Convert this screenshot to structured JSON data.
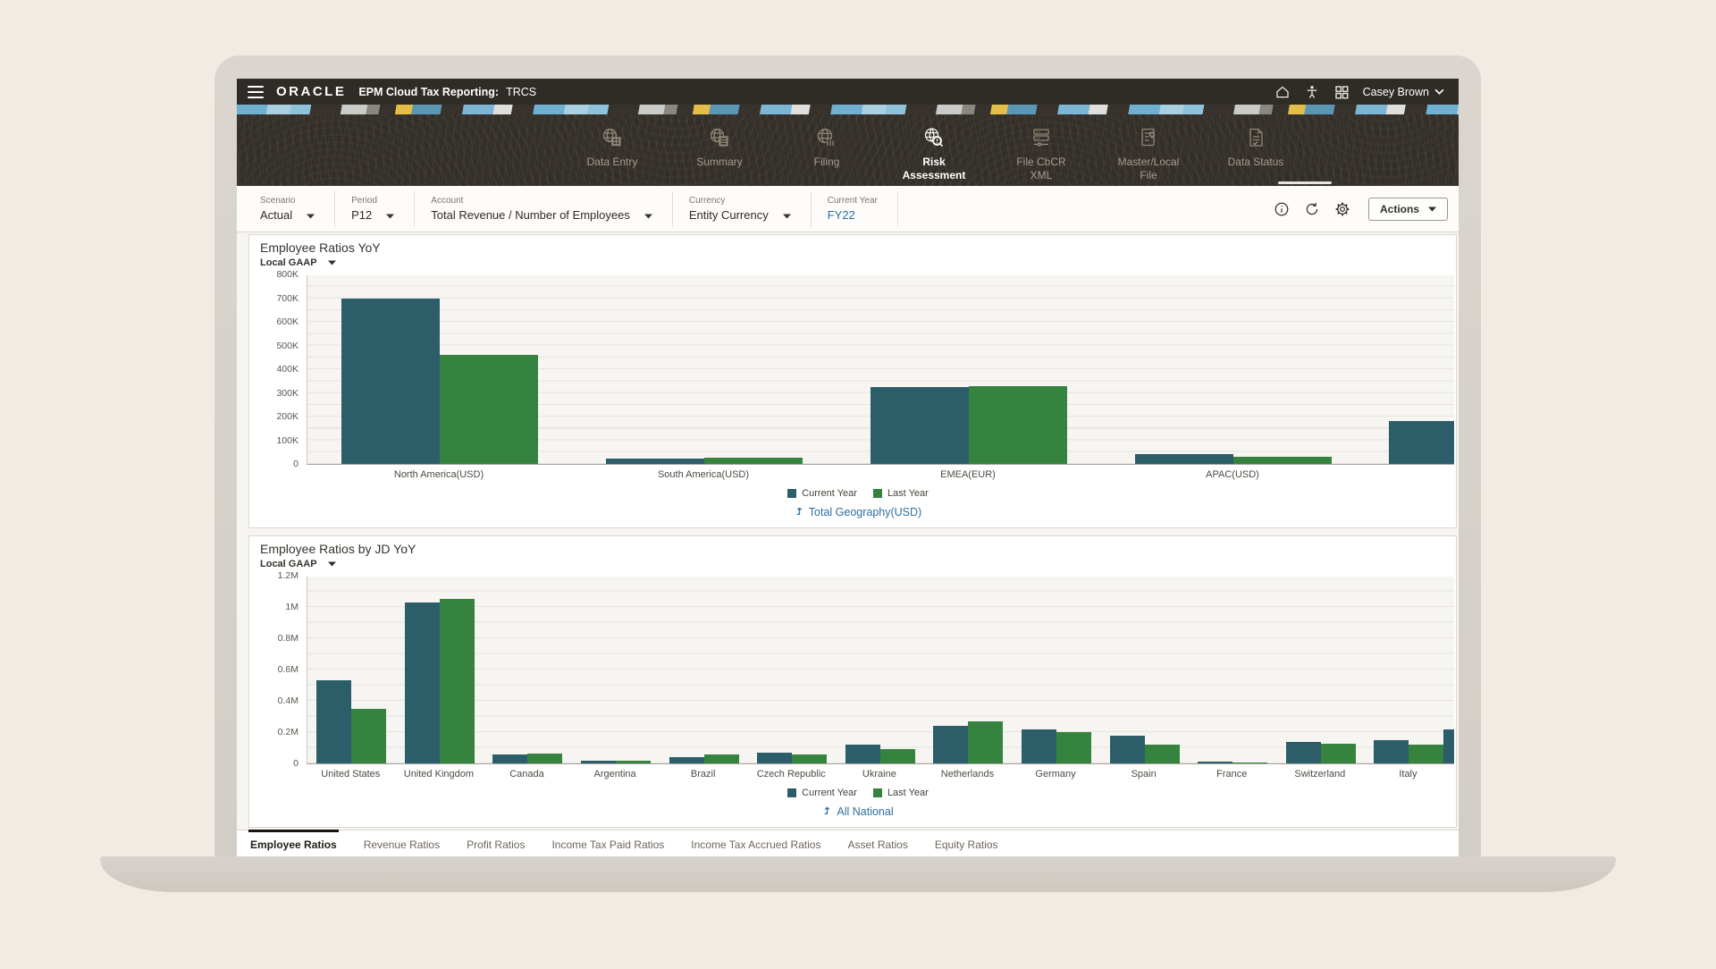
{
  "topbar": {
    "brand": "ORACLE",
    "app_title": "EPM Cloud Tax Reporting:",
    "app_context": "TRCS",
    "user": "Casey Brown"
  },
  "nav": {
    "items": [
      {
        "label": "Data Entry",
        "icon": "data-entry-icon",
        "active": false
      },
      {
        "label": "Summary",
        "icon": "summary-icon",
        "active": false
      },
      {
        "label": "Filing",
        "icon": "filing-icon",
        "active": false
      },
      {
        "label": "Risk Assessment",
        "icon": "risk-assessment-icon",
        "active": true
      },
      {
        "label": "File CbCR XML",
        "icon": "file-cbcr-xml-icon",
        "active": false
      },
      {
        "label": "Master/Local File",
        "icon": "master-local-file-icon",
        "active": false
      },
      {
        "label": "Data Status",
        "icon": "data-status-icon",
        "active": false
      }
    ]
  },
  "filters": {
    "items": [
      {
        "label": "Scenario",
        "value": "Actual",
        "dropdown": true,
        "highlight": false
      },
      {
        "label": "Period",
        "value": "P12",
        "dropdown": true,
        "highlight": false
      },
      {
        "label": "Account",
        "value": "Total Revenue / Number of Employees",
        "dropdown": true,
        "highlight": false
      },
      {
        "label": "Currency",
        "value": "Entity Currency",
        "dropdown": true,
        "highlight": false
      },
      {
        "label": "Current Year",
        "value": "FY22",
        "dropdown": false,
        "highlight": true
      }
    ],
    "actions_label": "Actions"
  },
  "colors": {
    "current_year_bar": "#2c5e6a",
    "last_year_bar": "#36823f",
    "link": "#2e6f9e"
  },
  "chart_data": [
    {
      "type": "bar",
      "title": "Employee Ratios YoY",
      "subtitle": "Local GAAP",
      "categories": [
        "North America(USD)",
        "South America(USD)",
        "EMEA(EUR)",
        "APAC(USD)"
      ],
      "series": [
        {
          "name": "Current Year",
          "color": "#2c5e6a",
          "values": [
            700000,
            22000,
            325000,
            42000
          ]
        },
        {
          "name": "Last Year",
          "color": "#36823f",
          "values": [
            460000,
            28000,
            330000,
            30000
          ]
        }
      ],
      "y_ticks": [
        "0",
        "100K",
        "200K",
        "300K",
        "400K",
        "500K",
        "600K",
        "700K",
        "800K"
      ],
      "ylim": [
        0,
        800000
      ],
      "grid": true,
      "legend_position": "bottom-center",
      "clipped_partial_bar_value": 180000,
      "footer_link": "Total Geography(USD)"
    },
    {
      "type": "bar",
      "title": "Employee Ratios by JD YoY",
      "subtitle": "Local GAAP",
      "categories": [
        "United States",
        "United Kingdom",
        "Canada",
        "Argentina",
        "Brazil",
        "Czech Republic",
        "Ukraine",
        "Netherlands",
        "Germany",
        "Spain",
        "France",
        "Switzerland",
        "Italy"
      ],
      "series": [
        {
          "name": "Current Year",
          "color": "#2c5e6a",
          "values": [
            530000,
            1030000,
            55000,
            18000,
            40000,
            70000,
            120000,
            240000,
            220000,
            180000,
            12000,
            140000,
            150000
          ]
        },
        {
          "name": "Last Year",
          "color": "#36823f",
          "values": [
            350000,
            1050000,
            65000,
            20000,
            55000,
            55000,
            90000,
            270000,
            200000,
            120000,
            6000,
            125000,
            120000
          ]
        }
      ],
      "y_ticks": [
        "0",
        "0.2M",
        "0.4M",
        "0.6M",
        "0.8M",
        "1M",
        "1.2M"
      ],
      "ylim": [
        0,
        1200000
      ],
      "grid": true,
      "legend_position": "bottom-center",
      "clipped_partial_bar_value": 220000,
      "footer_link": "All National"
    }
  ],
  "bottom_tabs": {
    "items": [
      "Employee Ratios",
      "Revenue Ratios",
      "Profit Ratios",
      "Income Tax Paid Ratios",
      "Income Tax Accrued Ratios",
      "Asset Ratios",
      "Equity Ratios"
    ],
    "active": "Employee Ratios"
  }
}
